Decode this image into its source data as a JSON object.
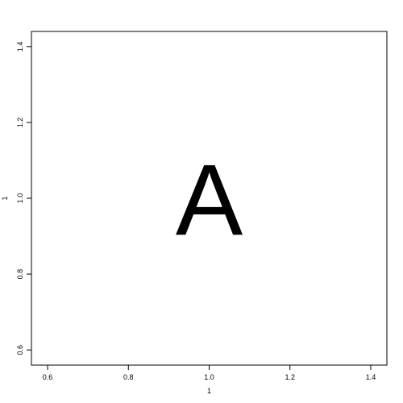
{
  "chart_data": {
    "type": "scatter",
    "title": "",
    "xlabel": "1",
    "ylabel": "1",
    "xlim": [
      0.56,
      1.44
    ],
    "ylim": [
      0.56,
      1.44
    ],
    "x_ticks": [
      0.6,
      0.8,
      1.0,
      1.2,
      1.4
    ],
    "x_tick_labels": [
      "0.6",
      "0.8",
      "1.0",
      "1.2",
      "1.4"
    ],
    "y_ticks": [
      0.6,
      0.8,
      1.0,
      1.2,
      1.4
    ],
    "y_tick_labels": [
      "0.6",
      "0.8",
      "1.0",
      "1.2",
      "1.4"
    ],
    "grid": false,
    "points": [
      {
        "x": 1.0,
        "y": 1.0,
        "label": "A"
      }
    ],
    "colors": {
      "axis": "#000000",
      "marker": "#000000",
      "background": "#ffffff"
    }
  }
}
